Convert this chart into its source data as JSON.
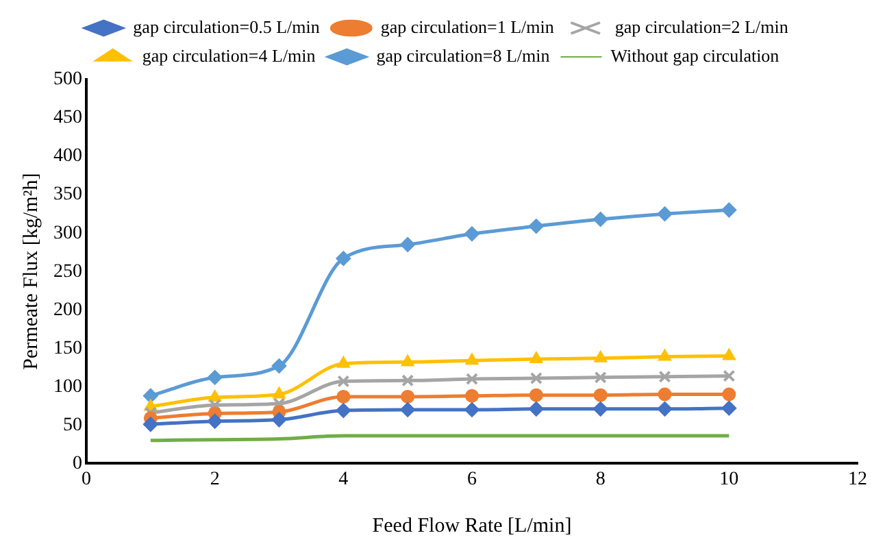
{
  "chart_data": {
    "type": "line",
    "xlabel": "Feed Flow Rate [L/min]",
    "ylabel": "Permeate Flux [kg/m²h]",
    "x": [
      1,
      2,
      3,
      4,
      5,
      6,
      7,
      8,
      9,
      10
    ],
    "xlim": [
      0,
      12
    ],
    "xticks": [
      0,
      2,
      4,
      6,
      8,
      10,
      12
    ],
    "ylim": [
      0,
      500
    ],
    "yticks": [
      0,
      50,
      100,
      150,
      200,
      250,
      300,
      350,
      400,
      450,
      500
    ],
    "grid": false,
    "legend": "top",
    "series": [
      {
        "name": "gap circulation=0.5 L/min",
        "color": "#4472c4",
        "marker": "diamond",
        "values": [
          51,
          55,
          57,
          69,
          70,
          70,
          71,
          71,
          71,
          72
        ]
      },
      {
        "name": "gap circulation=1 L/min",
        "color": "#ed7d31",
        "marker": "circle",
        "values": [
          59,
          65,
          67,
          87,
          87,
          88,
          89,
          89,
          90,
          90
        ]
      },
      {
        "name": "gap circulation=2 L/min",
        "color": "#a5a5a5",
        "marker": "cross",
        "values": [
          66,
          76,
          78,
          107,
          108,
          110,
          111,
          112,
          113,
          114
        ]
      },
      {
        "name": "gap circulation=4 L/min",
        "color": "#ffc000",
        "marker": "triangle",
        "values": [
          74,
          86,
          90,
          130,
          132,
          134,
          136,
          137,
          139,
          140
        ]
      },
      {
        "name": "gap circulation=8 L/min",
        "color": "#5b9bd5",
        "marker": "diamond",
        "values": [
          88,
          112,
          127,
          267,
          285,
          299,
          309,
          318,
          325,
          330
        ]
      },
      {
        "name": "Without gap circulation",
        "color": "#70ad47",
        "marker": "none",
        "values": [
          30,
          31,
          32,
          36,
          36,
          36,
          36,
          36,
          36,
          36
        ]
      }
    ]
  }
}
